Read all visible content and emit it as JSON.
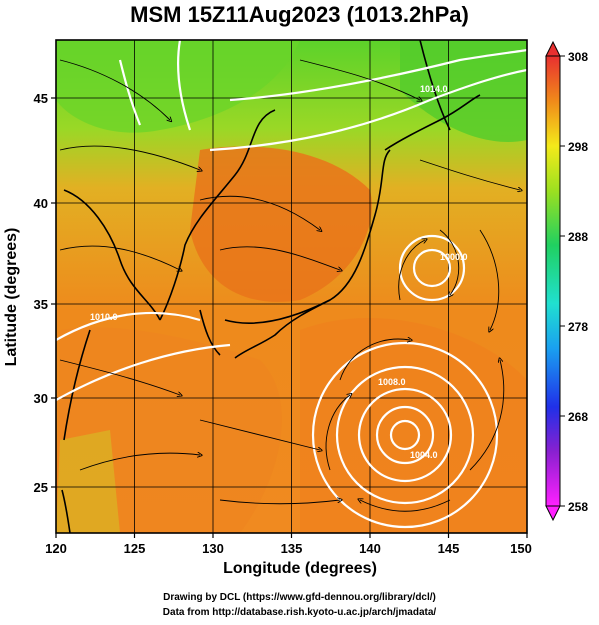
{
  "title": "MSM 15Z11Aug2023 (1013.2hPa)",
  "axes": {
    "x_label": "Longitude (degrees)",
    "y_label": "Latitude  (degrees)",
    "x_ticks": [
      "120",
      "125",
      "130",
      "135",
      "140",
      "145",
      "150"
    ],
    "y_ticks": [
      "25",
      "30",
      "35",
      "40",
      "45"
    ]
  },
  "colorbar": {
    "ticks": [
      "308",
      "298",
      "288",
      "278",
      "268",
      "258"
    ],
    "min": 258,
    "max": 308
  },
  "contour_labels": [
    "1014.0",
    "1010.0",
    "1008.0",
    "1004.0",
    "1000.0"
  ],
  "credits": {
    "line1": "Drawing by DCL (https://www.gfd-dennou.org/library/dcl/)",
    "line2": "Data from http://database.rish.kyoto-u.ac.jp/arch/jmadata/"
  },
  "colors": {
    "warm": "#f07a1a",
    "mid": "#e6b41e",
    "cool": "#5ed22a"
  }
}
